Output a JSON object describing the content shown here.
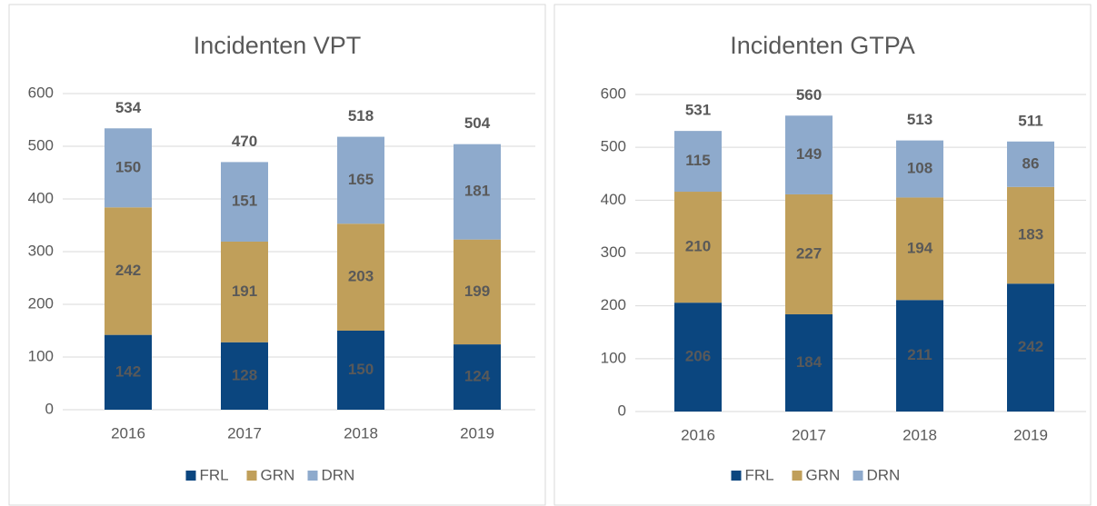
{
  "chart_data": [
    {
      "type": "bar",
      "stacked": true,
      "title": "Incidenten VPT",
      "categories": [
        "2016",
        "2017",
        "2018",
        "2019"
      ],
      "series": [
        {
          "name": "FRL",
          "color": "#0b467f",
          "values": [
            142,
            128,
            150,
            124
          ]
        },
        {
          "name": "GRN",
          "color": "#c09f5a",
          "values": [
            242,
            191,
            203,
            199
          ]
        },
        {
          "name": "DRN",
          "color": "#8eaacc",
          "values": [
            150,
            151,
            165,
            181
          ]
        }
      ],
      "totals": [
        534,
        470,
        518,
        504
      ],
      "ylim": [
        0,
        600
      ],
      "yticks": [
        0,
        100,
        200,
        300,
        400,
        500,
        600
      ],
      "grid": true,
      "legend": "bottom"
    },
    {
      "type": "bar",
      "stacked": true,
      "title": "Incidenten GTPA",
      "categories": [
        "2016",
        "2017",
        "2018",
        "2019"
      ],
      "series": [
        {
          "name": "FRL",
          "color": "#0b467f",
          "values": [
            206,
            184,
            211,
            242
          ]
        },
        {
          "name": "GRN",
          "color": "#c09f5a",
          "values": [
            210,
            227,
            194,
            183
          ]
        },
        {
          "name": "DRN",
          "color": "#8eaacc",
          "values": [
            115,
            149,
            108,
            86
          ]
        }
      ],
      "totals": [
        531,
        560,
        513,
        511
      ],
      "ylim": [
        0,
        600
      ],
      "yticks": [
        0,
        100,
        200,
        300,
        400,
        500,
        600
      ],
      "grid": true,
      "legend": "bottom"
    }
  ]
}
